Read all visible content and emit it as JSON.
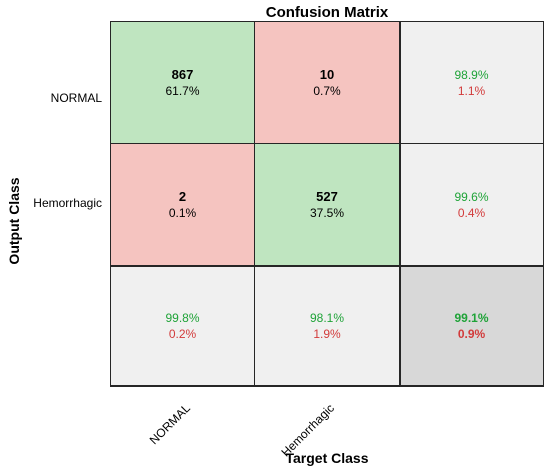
{
  "chart_data": {
    "type": "heatmap",
    "title": "Confusion Matrix",
    "xlabel": "Target Class",
    "ylabel": "Output Class",
    "classes": [
      "NORMAL",
      "Hemorrhagic"
    ],
    "matrix": [
      {
        "count": "867",
        "percent": "61.7%"
      },
      {
        "count": "10",
        "percent": "0.7%"
      },
      {
        "count": "2",
        "percent": "0.1%"
      },
      {
        "count": "527",
        "percent": "37.5%"
      }
    ],
    "row_summary": [
      {
        "correct": "98.9%",
        "incorrect": "1.1%"
      },
      {
        "correct": "99.6%",
        "incorrect": "0.4%"
      }
    ],
    "col_summary": [
      {
        "correct": "99.8%",
        "incorrect": "0.2%"
      },
      {
        "correct": "98.1%",
        "incorrect": "1.9%"
      }
    ],
    "overall": {
      "correct": "99.1%",
      "incorrect": "0.9%"
    },
    "colors": {
      "correct_cell": "#bfe5c0",
      "incorrect_cell": "#f5c4c0",
      "summary_cell": "#f0f0f0",
      "overall_cell": "#d8d8d8",
      "correct_text": "#1fa338",
      "incorrect_text": "#d23b3b"
    }
  }
}
